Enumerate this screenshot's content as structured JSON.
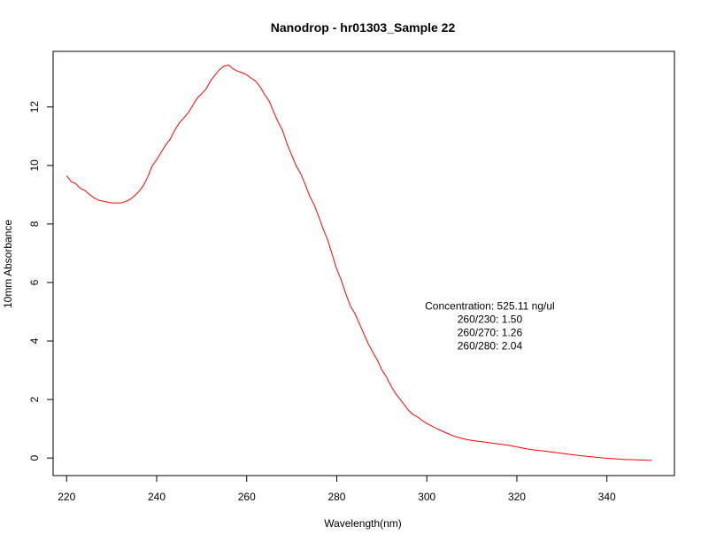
{
  "chart_data": {
    "type": "line",
    "title": "Nanodrop - hr01303_Sample 22",
    "xlabel": "Wavelength(nm)",
    "ylabel": "10mm Absorbance",
    "xlim": [
      217,
      355
    ],
    "ylim": [
      -0.6,
      13.9
    ],
    "xticks": [
      220,
      240,
      260,
      280,
      300,
      320,
      340
    ],
    "yticks": [
      0,
      2,
      4,
      6,
      8,
      10,
      12
    ],
    "grid": false,
    "series": [
      {
        "color": "#ff0000",
        "x": [
          220,
          221,
          222,
          223,
          224,
          225,
          226,
          227,
          228,
          229,
          230,
          231,
          232,
          233,
          234,
          235,
          236,
          237,
          238,
          239,
          240,
          241,
          242,
          243,
          244,
          245,
          246,
          247,
          248,
          249,
          250,
          251,
          252,
          253,
          254,
          255,
          256,
          257,
          258,
          259,
          260,
          261,
          262,
          263,
          264,
          265,
          266,
          267,
          268,
          269,
          270,
          271,
          272,
          273,
          274,
          275,
          276,
          277,
          278,
          279,
          280,
          281,
          282,
          283,
          284,
          285,
          286,
          287,
          288,
          289,
          290,
          291,
          292,
          293,
          294,
          295,
          296,
          297,
          298,
          299,
          300,
          302,
          304,
          306,
          308,
          310,
          312,
          314,
          316,
          318,
          320,
          322,
          324,
          326,
          328,
          330,
          332,
          334,
          336,
          338,
          340,
          342,
          344,
          346,
          348,
          350
        ],
        "y": [
          9.65,
          9.45,
          9.38,
          9.22,
          9.15,
          9.02,
          8.9,
          8.82,
          8.78,
          8.75,
          8.72,
          8.72,
          8.72,
          8.76,
          8.83,
          8.95,
          9.1,
          9.3,
          9.6,
          9.98,
          10.2,
          10.45,
          10.7,
          10.9,
          11.2,
          11.45,
          11.62,
          11.8,
          12.05,
          12.3,
          12.45,
          12.62,
          12.9,
          13.1,
          13.28,
          13.4,
          13.43,
          13.3,
          13.22,
          13.17,
          13.1,
          12.98,
          12.88,
          12.68,
          12.42,
          12.2,
          11.82,
          11.48,
          11.18,
          10.72,
          10.35,
          9.98,
          9.72,
          9.35,
          8.95,
          8.65,
          8.25,
          7.82,
          7.45,
          6.95,
          6.45,
          6.08,
          5.62,
          5.2,
          4.95,
          4.6,
          4.25,
          3.9,
          3.62,
          3.35,
          3.02,
          2.78,
          2.48,
          2.22,
          2.02,
          1.82,
          1.62,
          1.48,
          1.4,
          1.28,
          1.18,
          1.02,
          0.88,
          0.75,
          0.66,
          0.6,
          0.56,
          0.52,
          0.48,
          0.44,
          0.38,
          0.32,
          0.27,
          0.24,
          0.2,
          0.16,
          0.12,
          0.08,
          0.05,
          0.02,
          -0.01,
          -0.03,
          -0.05,
          -0.06,
          -0.07,
          -0.08
        ]
      }
    ],
    "annotations": [
      "Concentration: 525.11 ng/ul",
      "260/230: 1.50",
      "260/270: 1.26",
      "260/280: 2.04"
    ]
  }
}
